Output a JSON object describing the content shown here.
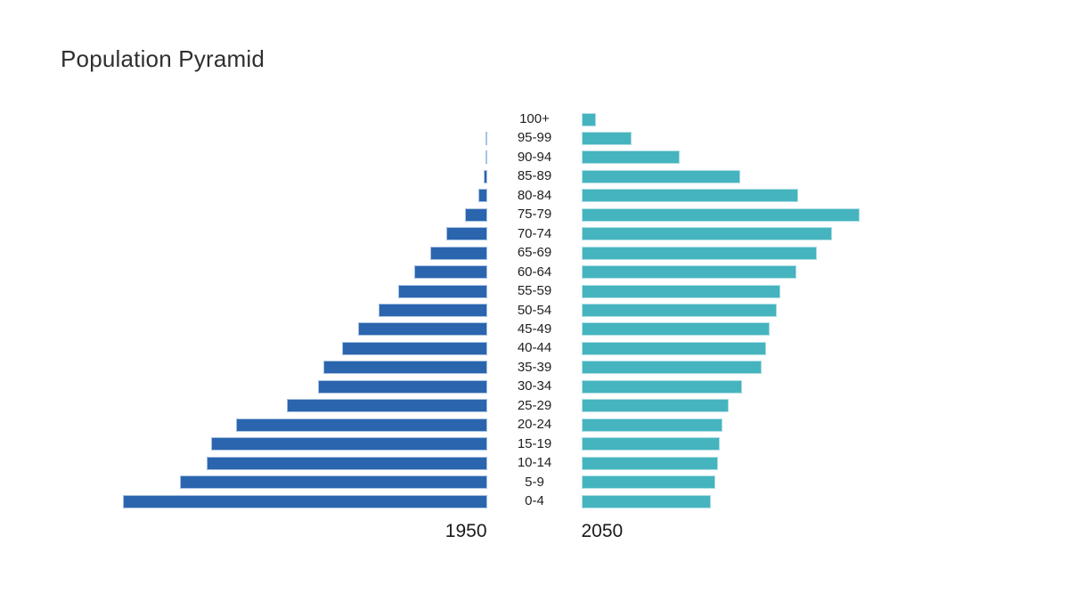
{
  "title": "Population Pyramid",
  "series_footer_labels": {
    "left": "1950",
    "right": "2050"
  },
  "colors": {
    "left_bar_fill": "#2a65ae",
    "left_bar_stroke": "#a9c2e2",
    "right_bar_fill": "#45b4bf",
    "right_bar_stroke": "#aedfe4",
    "title_text": "#2f2f2f",
    "label_text": "#1f1f1f",
    "background": "#ffffff"
  },
  "chart_data": {
    "type": "bar",
    "variant": "population_pyramid",
    "title": "Population Pyramid",
    "orientation": "horizontal, mirrored from central age-group axis",
    "categories_top_to_bottom": [
      "100+",
      "95-99",
      "90-94",
      "85-89",
      "80-84",
      "75-79",
      "70-74",
      "65-69",
      "60-64",
      "55-59",
      "50-54",
      "45-49",
      "40-44",
      "35-39",
      "30-34",
      "25-29",
      "20-24",
      "15-19",
      "10-14",
      "5-9",
      "0-4"
    ],
    "series": [
      {
        "name": "1950",
        "side": "left",
        "color": "#2a65ae",
        "values": [
          0,
          1,
          2,
          4,
          10,
          25,
          46,
          64,
          82,
          100,
          122,
          145,
          163,
          184,
          190,
          225,
          282,
          310,
          315,
          345,
          409
        ]
      },
      {
        "name": "2050",
        "side": "right",
        "color": "#45b4bf",
        "values": [
          16,
          56,
          110,
          178,
          243,
          312,
          281,
          264,
          241,
          223,
          219,
          211,
          207,
          202,
          180,
          165,
          158,
          155,
          153,
          150,
          145
        ]
      }
    ],
    "units": "relative bar length (pixels); no numeric axis, ticks or gridlines are shown",
    "legend": "none",
    "grid": "off",
    "axis_notes": "age-group labels run down the center; series name labels 1950 and 2050 sit below the base of each half"
  }
}
